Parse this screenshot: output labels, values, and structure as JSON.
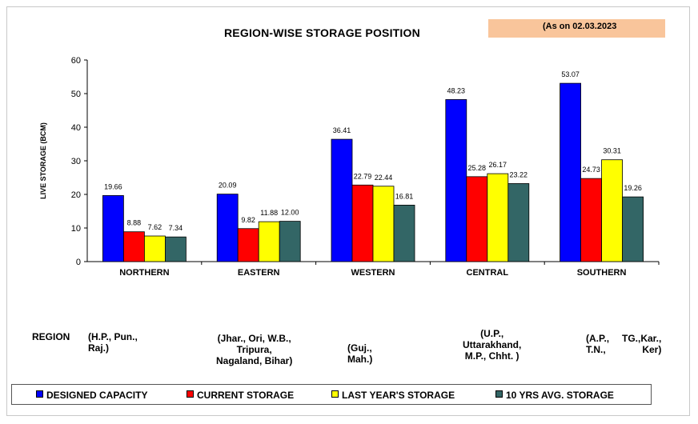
{
  "header": {
    "as_on": "(As on 02.03.2023",
    "title": "REGION-WISE STORAGE POSITION"
  },
  "chart_data": {
    "type": "bar",
    "title": "REGION-WISE STORAGE POSITION",
    "xlabel": "",
    "ylabel": "LIVE STORAGE (BCM)",
    "ylim": [
      0,
      60
    ],
    "yticks": [
      0,
      10,
      20,
      30,
      40,
      50,
      60
    ],
    "categories": [
      "NORTHERN",
      "EASTERN",
      "WESTERN",
      "CENTRAL",
      "SOUTHERN"
    ],
    "series": [
      {
        "name": "DESIGNED CAPACITY",
        "color": "#0000ff",
        "values": [
          19.66,
          20.09,
          36.41,
          48.23,
          53.07
        ]
      },
      {
        "name": "CURRENT STORAGE",
        "color": "#ff0000",
        "values": [
          8.88,
          9.82,
          22.79,
          25.28,
          24.73
        ]
      },
      {
        "name": "LAST YEAR'S STORAGE",
        "color": "#ffff00",
        "values": [
          7.62,
          11.88,
          22.44,
          26.17,
          30.31
        ]
      },
      {
        "name": "10 YRS AVG. STORAGE",
        "color": "#336666",
        "values": [
          7.34,
          12.0,
          16.81,
          23.22,
          19.26
        ]
      }
    ],
    "data_labels": [
      [
        "19.66",
        "20.09",
        "36.41",
        "48.23",
        "53.07"
      ],
      [
        "8.88",
        "9.82",
        "22.79",
        "25.28",
        "24.73"
      ],
      [
        "7.62",
        "11.88",
        "22.44",
        "26.17",
        "30.31"
      ],
      [
        "7.34",
        "12.00",
        "16.81",
        "23.22",
        "19.26"
      ]
    ],
    "grid": false,
    "legend": "bottom"
  },
  "regions": {
    "label": "REGION",
    "northern": [
      "(H.P., Pun.,",
      "Raj.)"
    ],
    "eastern": [
      "(Jhar., Ori, W.B.,",
      "Tripura,",
      "Nagaland, Bihar)"
    ],
    "western": [
      "(Guj.,",
      "Mah.)"
    ],
    "central": [
      "(U.P.,",
      "Uttarakhand,",
      "M.P., Chht. )"
    ],
    "southern_a": [
      "(A.P.,",
      "T.N.,"
    ],
    "southern_b": [
      "TG.,Kar.,",
      "Ker)"
    ]
  }
}
